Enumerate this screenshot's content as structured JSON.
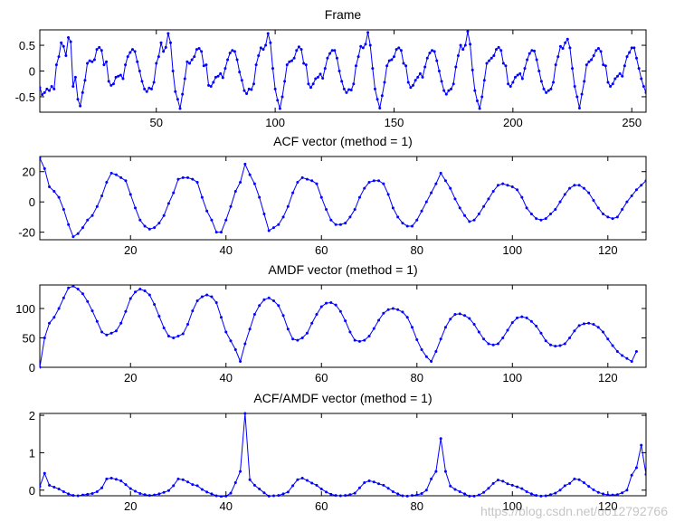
{
  "watermark": "https://blog.csdn.net/u012792766",
  "colors": {
    "line": "#0000ff",
    "axis": "#000000",
    "background": "#ffffff"
  },
  "chart_data": [
    {
      "type": "line",
      "title": "Frame",
      "xlim": [
        1,
        256
      ],
      "ylim": [
        -0.8,
        0.8
      ],
      "xticks": [
        50,
        100,
        150,
        200,
        250
      ],
      "yticks": [
        -0.5,
        0,
        0.5
      ],
      "ytick_labels": [
        "-0.5",
        "0",
        "0.5"
      ],
      "x_start": 1,
      "x_step": 1,
      "series": [
        {
          "values": [
            -0.32,
            -0.46,
            -0.42,
            -0.35,
            -0.38,
            -0.3,
            -0.35,
            0.12,
            0.28,
            0.55,
            0.48,
            0.3,
            0.65,
            0.57,
            -0.3,
            -0.12,
            -0.55,
            -0.68,
            -0.42,
            -0.18,
            0.15,
            0.2,
            0.18,
            0.22,
            0.42,
            0.46,
            0.4,
            0.12,
            0.18,
            -0.2,
            -0.28,
            -0.25,
            -0.12,
            -0.1,
            -0.08,
            -0.15,
            0.12,
            0.28,
            0.36,
            0.42,
            0.38,
            0.18,
            0.0,
            -0.2,
            -0.35,
            -0.4,
            -0.33,
            -0.35,
            -0.22,
            0.15,
            0.28,
            0.55,
            0.38,
            0.46,
            0.73,
            0.55,
            0.0,
            -0.4,
            -0.55,
            -0.73,
            -0.45,
            -0.15,
            0.18,
            0.15,
            0.22,
            0.28,
            0.42,
            0.44,
            0.38,
            0.1,
            0.12,
            -0.28,
            -0.3,
            -0.22,
            -0.12,
            -0.1,
            -0.05,
            -0.13,
            0.05,
            0.22,
            0.35,
            0.4,
            0.38,
            0.22,
            -0.02,
            -0.18,
            -0.38,
            -0.44,
            -0.35,
            -0.36,
            -0.25,
            0.12,
            0.3,
            0.45,
            0.42,
            0.5,
            0.73,
            0.55,
            0.05,
            -0.35,
            -0.57,
            -0.73,
            -0.5,
            -0.2,
            0.12,
            0.18,
            0.2,
            0.25,
            0.4,
            0.47,
            0.42,
            0.15,
            0.12,
            -0.25,
            -0.32,
            -0.25,
            -0.15,
            -0.12,
            -0.06,
            -0.14,
            0.05,
            0.25,
            0.34,
            0.4,
            0.4,
            0.25,
            0.0,
            -0.2,
            -0.35,
            -0.42,
            -0.36,
            -0.37,
            -0.25,
            0.1,
            0.28,
            0.48,
            0.45,
            0.52,
            0.75,
            0.5,
            0.05,
            -0.35,
            -0.55,
            -0.72,
            -0.48,
            -0.22,
            0.1,
            0.2,
            0.22,
            0.28,
            0.42,
            0.45,
            0.4,
            0.15,
            0.1,
            -0.22,
            -0.32,
            -0.28,
            -0.18,
            -0.12,
            -0.05,
            -0.12,
            0.08,
            0.25,
            0.35,
            0.4,
            0.38,
            0.2,
            0.0,
            -0.2,
            -0.38,
            -0.45,
            -0.38,
            -0.35,
            -0.25,
            0.08,
            0.3,
            0.5,
            0.42,
            0.5,
            0.77,
            0.52,
            0.02,
            -0.38,
            -0.58,
            -0.73,
            -0.5,
            -0.18,
            0.15,
            0.2,
            0.25,
            0.3,
            0.42,
            0.46,
            0.4,
            0.15,
            0.1,
            -0.25,
            -0.3,
            -0.22,
            -0.12,
            -0.08,
            -0.05,
            -0.15,
            0.05,
            0.22,
            0.34,
            0.4,
            0.39,
            0.22,
            0.0,
            -0.2,
            -0.35,
            -0.42,
            -0.38,
            -0.35,
            -0.22,
            0.12,
            0.28,
            0.48,
            0.44,
            0.55,
            0.62,
            0.45,
            0.05,
            -0.3,
            -0.5,
            -0.72,
            -0.45,
            -0.2,
            0.12,
            0.18,
            0.22,
            0.3,
            0.4,
            0.44,
            0.38,
            0.12,
            0.1,
            -0.22,
            -0.3,
            -0.25,
            -0.15,
            -0.1,
            -0.05,
            -0.1,
            0.1,
            0.28,
            0.36,
            0.45,
            0.45,
            0.25,
            0.05,
            -0.15,
            -0.3,
            -0.42,
            -0.38,
            -0.32
          ]
        }
      ]
    },
    {
      "type": "line",
      "title": "ACF vector (method = 1)",
      "xlim": [
        1,
        128
      ],
      "ylim": [
        -25,
        30
      ],
      "xticks": [
        20,
        40,
        60,
        80,
        100,
        120
      ],
      "yticks": [
        -20,
        0,
        20
      ],
      "ytick_labels": [
        "-20",
        "0",
        "20"
      ],
      "x_start": 1,
      "x_step": 1,
      "series": [
        {
          "values": [
            29.0,
            22.0,
            10.0,
            7.0,
            3.0,
            -5.0,
            -15.0,
            -23.0,
            -21.0,
            -17.0,
            -12.0,
            -9.0,
            -3.0,
            4.0,
            13.0,
            19.0,
            18.0,
            16.0,
            14.0,
            5.0,
            -4.0,
            -12.0,
            -16.0,
            -18.0,
            -17.0,
            -14.0,
            -9.0,
            -1.0,
            6.0,
            15.0,
            16.0,
            16.0,
            15.0,
            13.0,
            3.0,
            -6.0,
            -12.0,
            -20.0,
            -20.0,
            -12.0,
            -3.0,
            7.0,
            13.0,
            25.0,
            18.0,
            12.0,
            3.0,
            -8.0,
            -19.0,
            -17.0,
            -15.0,
            -10.0,
            -3.0,
            6.0,
            13.0,
            16.0,
            15.0,
            14.0,
            12.0,
            3.0,
            -5.0,
            -12.0,
            -15.0,
            -15.0,
            -14.0,
            -10.0,
            -5.0,
            3.0,
            9.0,
            13.0,
            14.0,
            14.0,
            12.0,
            5.0,
            -4.0,
            -10.0,
            -14.0,
            -16.0,
            -16.0,
            -12.0,
            -6.0,
            0.0,
            6.0,
            12.0,
            19.0,
            14.0,
            9.0,
            2.0,
            -4.0,
            -9.0,
            -13.0,
            -12.0,
            -8.0,
            -3.0,
            2.0,
            7.0,
            11.0,
            12.0,
            11.0,
            10.0,
            8.0,
            3.0,
            -4.0,
            -8.0,
            -11.0,
            -12.0,
            -11.0,
            -8.0,
            -5.0,
            0.0,
            5.0,
            9.0,
            11.0,
            11.0,
            9.0,
            6.0,
            1.0,
            -4.0,
            -8.0,
            -10.0,
            -11.0,
            -10.0,
            -5.0,
            0.0,
            4.0,
            8.0,
            11.0,
            14.0
          ]
        }
      ]
    },
    {
      "type": "line",
      "title": "AMDF vector (method = 1)",
      "xlim": [
        1,
        128
      ],
      "ylim": [
        0,
        140
      ],
      "xticks": [
        20,
        40,
        60,
        80,
        100,
        120
      ],
      "yticks": [
        0,
        50,
        100
      ],
      "ytick_labels": [
        "0",
        "50",
        "100"
      ],
      "x_start": 1,
      "x_step": 1,
      "series": [
        {
          "values": [
            0.0,
            50.0,
            75.0,
            85.0,
            100.0,
            118.0,
            135.0,
            138.0,
            133.0,
            125.0,
            112.0,
            96.0,
            78.0,
            60.0,
            55.0,
            58.0,
            62.0,
            75.0,
            95.0,
            117.0,
            128.0,
            133.0,
            130.0,
            123.0,
            107.0,
            87.0,
            67.0,
            53.0,
            50.0,
            53.0,
            57.0,
            73.0,
            96.0,
            113.0,
            120.0,
            123.0,
            120.0,
            110.0,
            85.0,
            60.0,
            45.0,
            30.0,
            10.0,
            40.0,
            65.0,
            90.0,
            105.0,
            115.0,
            118.0,
            113.0,
            105.0,
            88.0,
            65.0,
            48.0,
            46.0,
            50.0,
            58.0,
            75.0,
            90.0,
            103.0,
            109.0,
            110.0,
            106.0,
            95.0,
            79.0,
            60.0,
            46.0,
            44.0,
            46.0,
            53.0,
            66.0,
            80.0,
            92.0,
            98.0,
            100.0,
            98.0,
            94.0,
            85.0,
            68.0,
            47.0,
            30.0,
            18.0,
            10.0,
            27.0,
            48.0,
            68.0,
            82.0,
            90.0,
            91.0,
            88.0,
            83.0,
            73.0,
            60.0,
            48.0,
            40.0,
            38.0,
            40.0,
            50.0,
            63.0,
            76.0,
            84.0,
            86.0,
            84.0,
            78.0,
            70.0,
            58.0,
            45.0,
            38.0,
            36.0,
            37.0,
            40.0,
            50.0,
            62.0,
            71.0,
            74.0,
            75.0,
            73.0,
            68.0,
            60.0,
            48.0,
            37.0,
            27.0,
            20.0,
            15.0,
            10.0,
            27.0
          ]
        }
      ]
    },
    {
      "type": "line",
      "title": "ACF/AMDF vector (method = 1)",
      "xlim": [
        1,
        128
      ],
      "ylim": [
        -0.15,
        2.05
      ],
      "xticks": [
        20,
        40,
        60,
        80,
        100,
        120
      ],
      "yticks": [
        0,
        1,
        2
      ],
      "ytick_labels": [
        "0",
        "1",
        "2"
      ],
      "x_start": 1,
      "x_step": 1,
      "series": [
        {
          "values": [
            0.1,
            0.45,
            0.13,
            0.08,
            0.03,
            -0.04,
            -0.1,
            -0.14,
            -0.15,
            -0.13,
            -0.11,
            -0.09,
            -0.04,
            0.06,
            0.3,
            0.32,
            0.29,
            0.25,
            0.15,
            0.04,
            -0.03,
            -0.09,
            -0.12,
            -0.14,
            -0.13,
            -0.1,
            -0.06,
            -0.01,
            0.12,
            0.3,
            0.28,
            0.22,
            0.15,
            0.12,
            0.02,
            -0.05,
            -0.1,
            -0.15,
            -0.17,
            -0.16,
            -0.08,
            0.2,
            0.5,
            2.05,
            0.28,
            0.13,
            0.03,
            -0.07,
            -0.16,
            -0.15,
            -0.14,
            -0.1,
            -0.05,
            0.12,
            0.28,
            0.32,
            0.26,
            0.19,
            0.13,
            0.03,
            -0.05,
            -0.11,
            -0.14,
            -0.15,
            -0.14,
            -0.12,
            -0.08,
            0.06,
            0.2,
            0.25,
            0.22,
            0.17,
            0.13,
            0.05,
            -0.04,
            -0.1,
            -0.15,
            -0.16,
            -0.14,
            -0.13,
            -0.09,
            0.0,
            0.3,
            0.5,
            1.38,
            0.5,
            0.11,
            0.02,
            -0.04,
            -0.1,
            -0.16,
            -0.16,
            -0.13,
            -0.06,
            0.05,
            0.18,
            0.27,
            0.24,
            0.17,
            0.13,
            0.09,
            0.04,
            -0.04,
            -0.1,
            -0.14,
            -0.16,
            -0.15,
            -0.12,
            -0.08,
            0.0,
            0.12,
            0.18,
            0.3,
            0.28,
            0.2,
            0.1,
            0.01,
            -0.06,
            -0.1,
            -0.13,
            -0.13,
            -0.12,
            -0.07,
            0.0,
            0.4,
            0.6,
            1.2,
            0.42
          ]
        }
      ]
    }
  ]
}
